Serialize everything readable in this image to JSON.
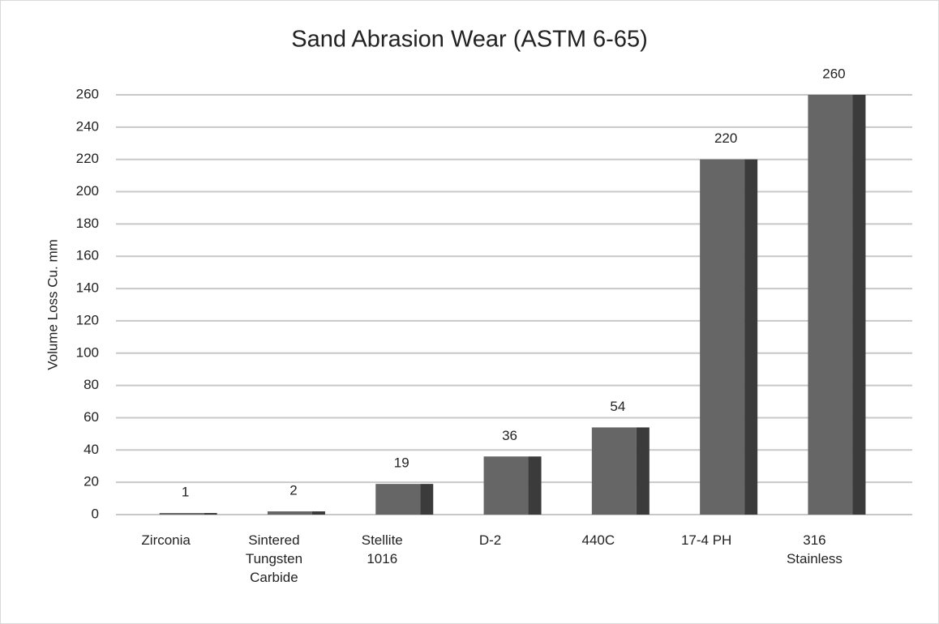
{
  "chart_data": {
    "type": "bar",
    "title": "Sand Abrasion Wear (ASTM 6-65)",
    "y_label": "Volume Loss Cu. mm",
    "categories": [
      "Zirconia",
      "Sintered Tungsten Carbide",
      "Stellite 1016",
      "D-2",
      "440C",
      "17-4 PH",
      "316 Stainless"
    ],
    "values": [
      1,
      2,
      19,
      36,
      54,
      220,
      260
    ],
    "color": "#666666",
    "side_color": "#3b3b3b",
    "ylim": [
      0,
      260
    ],
    "yticks": [
      0,
      20,
      40,
      60,
      80,
      100,
      120,
      140,
      160,
      180,
      200,
      220,
      240,
      260
    ],
    "grid": true
  }
}
